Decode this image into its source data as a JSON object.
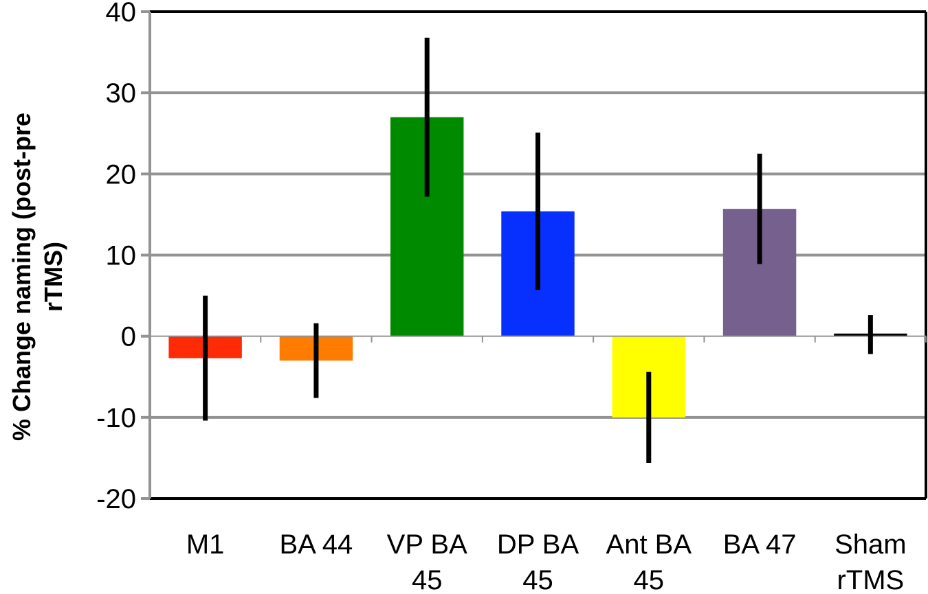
{
  "chart_data": {
    "type": "bar",
    "title": "",
    "ylabel": "% Change naming (post-pre rTMS)",
    "ylabel_lines": [
      "% Change naming (post-pre",
      "rTMS)"
    ],
    "xlabel": "",
    "ylim": [
      -20,
      40
    ],
    "yticks": [
      -20,
      -10,
      0,
      10,
      20,
      30,
      40
    ],
    "ytick_labels": [
      "-20",
      "-10",
      "0",
      "10",
      "20",
      "30",
      "40"
    ],
    "grid": true,
    "legend": "none",
    "categories": [
      "M1",
      "BA 44",
      "VP BA 45",
      "DP BA 45",
      "Ant BA 45",
      "BA 47",
      "Sham rTMS"
    ],
    "category_label_lines": [
      [
        "M1"
      ],
      [
        "BA 44"
      ],
      [
        "VP BA",
        "45"
      ],
      [
        "DP BA",
        "45"
      ],
      [
        "Ant BA",
        "45"
      ],
      [
        "BA 47"
      ],
      [
        "Sham",
        "rTMS"
      ]
    ],
    "values": [
      -2.7,
      -3.0,
      27.0,
      15.4,
      -10.0,
      15.7,
      0.2
    ],
    "error": [
      7.7,
      4.6,
      9.8,
      9.7,
      5.6,
      6.8,
      2.4
    ],
    "colors": [
      "#ff2a06",
      "#ff7c00",
      "#008a00",
      "#0730ff",
      "#ffff00",
      "#75608e",
      "#ffffff"
    ]
  }
}
